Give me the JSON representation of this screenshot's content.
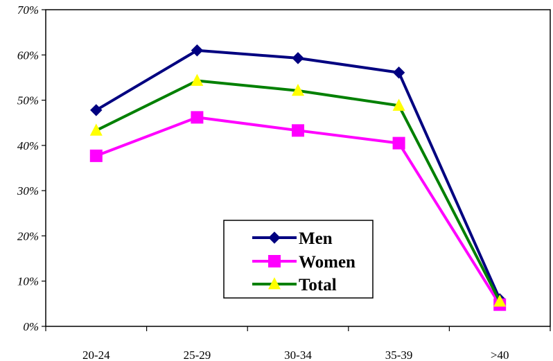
{
  "chart_data": {
    "type": "line",
    "title": "",
    "xlabel": "",
    "ylabel": "",
    "categories": [
      "20-24",
      "25-29",
      "30-34",
      "35-39",
      ">40"
    ],
    "y_tick_labels": [
      "0%",
      "10%",
      "20%",
      "30%",
      "40%",
      "50%",
      "60%",
      "70%"
    ],
    "ylim": [
      0,
      70
    ],
    "y_unit": "%",
    "grid": false,
    "legend_position": "center-bottom",
    "series": [
      {
        "name": "Men",
        "values": [
          47.8,
          61.0,
          59.3,
          56.1,
          6.0
        ],
        "color": "#000080",
        "marker": "diamond"
      },
      {
        "name": "Women",
        "values": [
          37.7,
          46.2,
          43.3,
          40.5,
          4.8
        ],
        "color": "#ff00ff",
        "marker": "square"
      },
      {
        "name": "Total",
        "values": [
          43.3,
          54.3,
          52.1,
          48.8,
          5.5
        ],
        "color": "#008000",
        "marker": "triangle",
        "marker_color": "#ffff00"
      }
    ]
  }
}
